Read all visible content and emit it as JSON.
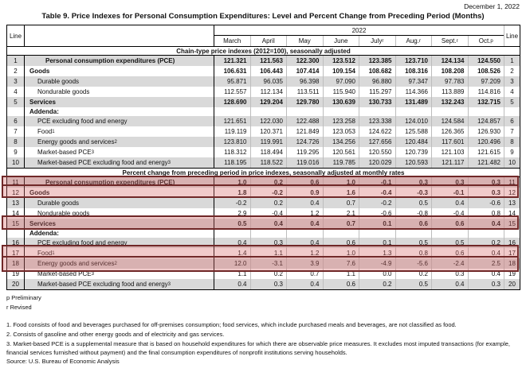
{
  "page": {
    "date": "December 1, 2022",
    "title": "Table 9. Price Indexes for Personal Consumption Expenditures: Level and Percent Change from Preceding Period (Months)"
  },
  "table": {
    "line_header": "Line",
    "year": "2022",
    "months": [
      {
        "label": "March",
        "sup": ""
      },
      {
        "label": "April",
        "sup": ""
      },
      {
        "label": "May",
        "sup": ""
      },
      {
        "label": "June",
        "sup": ""
      },
      {
        "label": "July",
        "sup": "r"
      },
      {
        "label": "Aug.",
        "sup": "r"
      },
      {
        "label": "Sept.",
        "sup": "r"
      },
      {
        "label": "Oct.",
        "sup": "p"
      }
    ],
    "body": [
      {
        "type": "span",
        "label": "Chain-type price indexes (2012=100), seasonally adjusted"
      },
      {
        "type": "row",
        "line": "1",
        "label": "Personal consumption expenditures (PCE)",
        "sup": "",
        "indent": 2,
        "bold": true,
        "values": [
          "121.321",
          "121.563",
          "122.300",
          "123.512",
          "123.385",
          "123.710",
          "124.134",
          "124.550"
        ]
      },
      {
        "type": "row",
        "line": "2",
        "label": "Goods",
        "sup": "",
        "indent": 0,
        "bold": true,
        "values": [
          "106.631",
          "106.443",
          "107.414",
          "109.154",
          "108.682",
          "108.316",
          "108.208",
          "108.526"
        ]
      },
      {
        "type": "row",
        "line": "3",
        "label": "Durable goods",
        "sup": "",
        "indent": 1,
        "bold": false,
        "values": [
          "95.871",
          "96.035",
          "96.398",
          "97.090",
          "96.880",
          "97.347",
          "97.783",
          "97.209"
        ]
      },
      {
        "type": "row",
        "line": "4",
        "label": "Nondurable goods",
        "sup": "",
        "indent": 1,
        "bold": false,
        "values": [
          "112.557",
          "112.134",
          "113.511",
          "115.940",
          "115.297",
          "114.366",
          "113.889",
          "114.816"
        ]
      },
      {
        "type": "row",
        "line": "5",
        "label": "Services",
        "sup": "",
        "indent": 0,
        "bold": true,
        "values": [
          "128.690",
          "129.204",
          "129.780",
          "130.639",
          "130.733",
          "131.489",
          "132.243",
          "132.715"
        ]
      },
      {
        "type": "sub",
        "label": "Addenda:"
      },
      {
        "type": "row",
        "line": "6",
        "label": "PCE excluding food and energy",
        "sup": "",
        "indent": 1,
        "bold": false,
        "values": [
          "121.651",
          "122.030",
          "122.488",
          "123.258",
          "123.338",
          "124.010",
          "124.584",
          "124.857"
        ]
      },
      {
        "type": "row",
        "line": "7",
        "label": "Food",
        "sup": "1",
        "indent": 1,
        "bold": false,
        "values": [
          "119.119",
          "120.371",
          "121.849",
          "123.053",
          "124.622",
          "125.588",
          "126.365",
          "126.930"
        ]
      },
      {
        "type": "row",
        "line": "8",
        "label": "Energy goods and services",
        "sup": "2",
        "indent": 1,
        "bold": false,
        "values": [
          "123.810",
          "119.991",
          "124.726",
          "134.256",
          "127.656",
          "120.484",
          "117.601",
          "120.496"
        ]
      },
      {
        "type": "row",
        "line": "9",
        "label": "Market-based PCE",
        "sup": "3",
        "indent": 1,
        "bold": false,
        "values": [
          "118.312",
          "118.494",
          "119.295",
          "120.561",
          "120.550",
          "120.739",
          "121.103",
          "121.615"
        ]
      },
      {
        "type": "row",
        "line": "10",
        "label": "Market-based PCE excluding food and energy",
        "sup": "3",
        "indent": 1,
        "bold": false,
        "values": [
          "118.195",
          "118.522",
          "119.016",
          "119.785",
          "120.029",
          "120.593",
          "121.117",
          "121.482"
        ]
      },
      {
        "type": "span",
        "label": "Percent change from preceding period in price indexes, seasonally adjusted at monthly rates",
        "top_border": true
      },
      {
        "type": "row",
        "line": "11",
        "label": "Personal consumption expenditures (PCE)",
        "sup": "",
        "indent": 2,
        "bold": true,
        "values": [
          "1.0",
          "0.2",
          "0.6",
          "1.0",
          "-0.1",
          "0.3",
          "0.3",
          "0.3"
        ]
      },
      {
        "type": "row",
        "line": "12",
        "label": "Goods",
        "sup": "",
        "indent": 0,
        "bold": true,
        "values": [
          "1.8",
          "-0.2",
          "0.9",
          "1.6",
          "-0.4",
          "-0.3",
          "-0.1",
          "0.3"
        ]
      },
      {
        "type": "row",
        "line": "13",
        "label": "Durable goods",
        "sup": "",
        "indent": 1,
        "bold": false,
        "values": [
          "-0.2",
          "0.2",
          "0.4",
          "0.7",
          "-0.2",
          "0.5",
          "0.4",
          "-0.6"
        ]
      },
      {
        "type": "row",
        "line": "14",
        "label": "Nondurable goods",
        "sup": "",
        "indent": 1,
        "bold": false,
        "values": [
          "2.9",
          "-0.4",
          "1.2",
          "2.1",
          "-0.6",
          "-0.8",
          "-0.4",
          "0.8"
        ]
      },
      {
        "type": "row",
        "line": "15",
        "label": "Services",
        "sup": "",
        "indent": 0,
        "bold": true,
        "values": [
          "0.5",
          "0.4",
          "0.4",
          "0.7",
          "0.1",
          "0.6",
          "0.6",
          "0.4"
        ]
      },
      {
        "type": "sub",
        "label": "Addenda:"
      },
      {
        "type": "row",
        "line": "16",
        "label": "PCE excluding food and energy",
        "sup": "",
        "indent": 1,
        "bold": false,
        "values": [
          "0.4",
          "0.3",
          "0.4",
          "0.6",
          "0.1",
          "0.5",
          "0.5",
          "0.2"
        ]
      },
      {
        "type": "row",
        "line": "17",
        "label": "Food",
        "sup": "1",
        "indent": 1,
        "bold": false,
        "values": [
          "1.4",
          "1.1",
          "1.2",
          "1.0",
          "1.3",
          "0.8",
          "0.6",
          "0.4"
        ]
      },
      {
        "type": "row",
        "line": "18",
        "label": "Energy goods and services",
        "sup": "2",
        "indent": 1,
        "bold": false,
        "values": [
          "12.0",
          "-3.1",
          "3.9",
          "7.6",
          "-4.9",
          "-5.6",
          "-2.4",
          "2.5"
        ]
      },
      {
        "type": "row",
        "line": "19",
        "label": "Market-based PCE",
        "sup": "3",
        "indent": 1,
        "bold": false,
        "values": [
          "1.1",
          "0.2",
          "0.7",
          "1.1",
          "0.0",
          "0.2",
          "0.3",
          "0.4"
        ]
      },
      {
        "type": "row",
        "line": "20",
        "label": "Market-based PCE excluding food and energy",
        "sup": "3",
        "indent": 1,
        "bold": false,
        "values": [
          "0.4",
          "0.3",
          "0.4",
          "0.6",
          "0.2",
          "0.5",
          "0.4",
          "0.3"
        ]
      }
    ],
    "highlighted_lines": [
      11,
      12,
      15,
      17,
      18
    ],
    "highlight_colors": {
      "fill": "#d66868",
      "border": "#702828"
    }
  },
  "notes": {
    "preliminary": "p Preliminary",
    "revised": "r Revised",
    "footnote_1": "1. Food consists of food and beverages purchased for off-premises consumption; food services, which include purchased meals and beverages, are not classified as food.",
    "footnote_2": "2. Consists of gasoline and other energy goods and of electricity and gas services.",
    "footnote_3": "3. Market-based PCE is a supplemental measure that is based on household expenditures for which there are observable price measures. It excludes most imputed transactions (for example, financial services furnished without payment) and the final consumption expenditures of nonprofit institutions serving households.",
    "source": "Source: U.S. Bureau of Economic Analysis"
  }
}
